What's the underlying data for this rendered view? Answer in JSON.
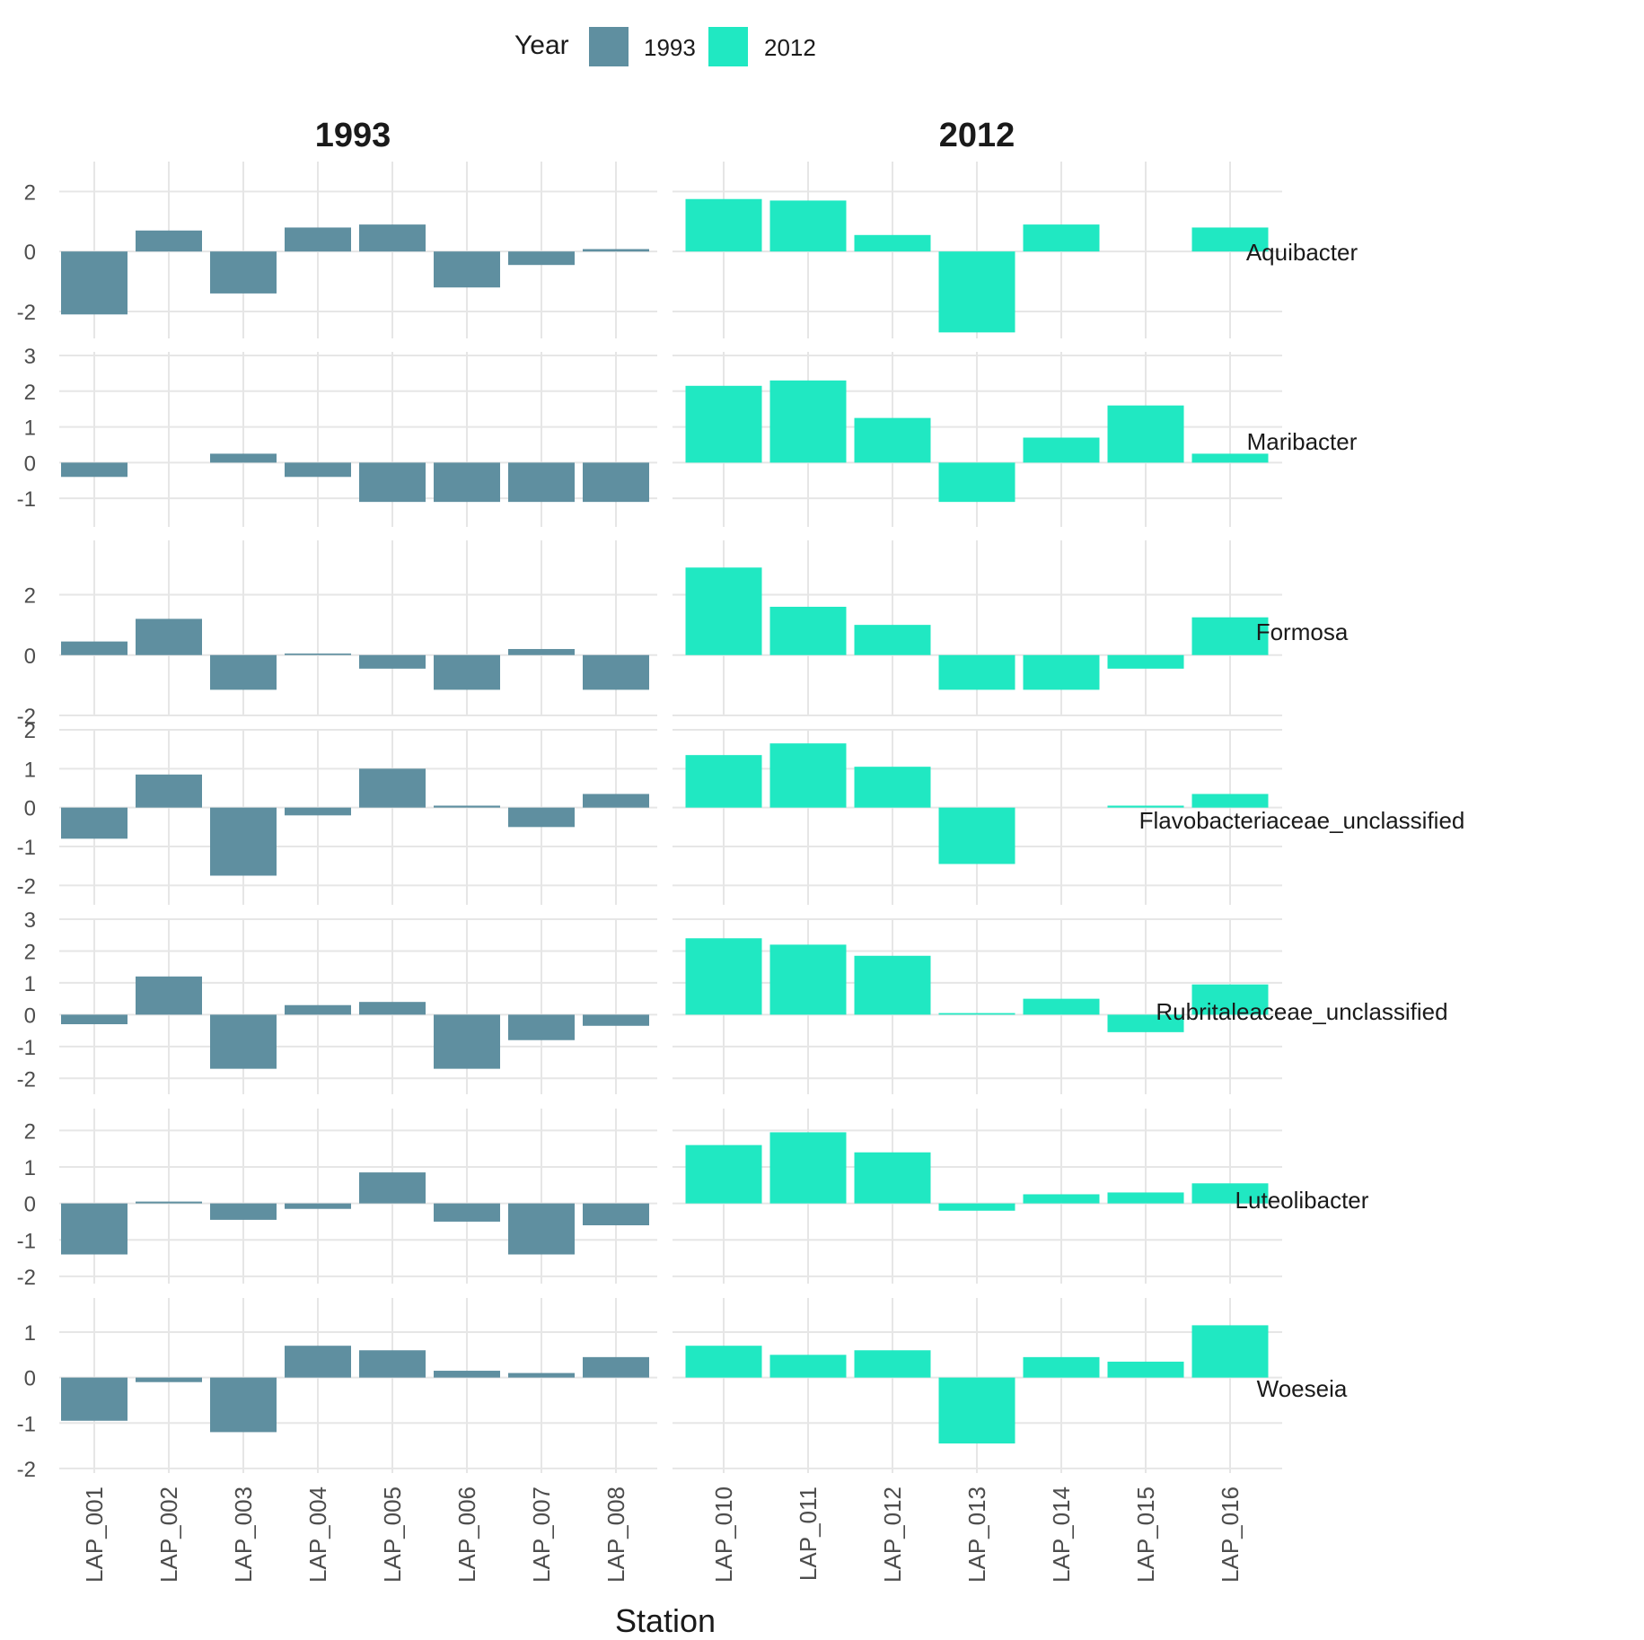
{
  "chart_data": {
    "type": "bar",
    "title": "",
    "xlabel": "Station",
    "ylabel": "",
    "legend": {
      "title": "Year",
      "position": "top",
      "entries": [
        {
          "label": "1993",
          "color": "#5f8fa0"
        },
        {
          "label": "2012",
          "color": "#20e8c2"
        }
      ]
    },
    "columns": [
      {
        "title": "1993",
        "color": "#5f8fa0",
        "categories": [
          "LAP_001",
          "LAP_002",
          "LAP_003",
          "LAP_004",
          "LAP_005",
          "LAP_006",
          "LAP_007",
          "LAP_008"
        ]
      },
      {
        "title": "2012",
        "color": "#20e8c2",
        "categories": [
          "LAP_010",
          "LAP_011",
          "LAP_012",
          "LAP_013",
          "LAP_014",
          "LAP_015",
          "LAP_016"
        ]
      }
    ],
    "rows": [
      {
        "label": "Aquibacter",
        "ylim": [
          -2.9,
          3.0
        ],
        "yticks": [
          -2,
          0,
          2
        ],
        "values": [
          [
            -2.1,
            0.7,
            -1.4,
            0.8,
            0.9,
            -1.2,
            -0.45,
            0.08
          ],
          [
            1.75,
            1.7,
            0.55,
            -2.7,
            0.9,
            0.0,
            0.8
          ]
        ]
      },
      {
        "label": "Maribacter",
        "ylim": [
          -1.8,
          3.1
        ],
        "yticks": [
          -1,
          0,
          1,
          2,
          3
        ],
        "values": [
          [
            -0.4,
            0.0,
            0.25,
            -0.4,
            -1.1,
            -1.1,
            -1.1,
            -1.1
          ],
          [
            2.15,
            2.3,
            1.25,
            -1.1,
            0.7,
            1.6,
            0.25
          ]
        ]
      },
      {
        "label": "Formosa",
        "ylim": [
          -2.0,
          3.8
        ],
        "yticks": [
          -2,
          0,
          2
        ],
        "values": [
          [
            0.45,
            1.2,
            -1.15,
            0.05,
            -0.45,
            -1.15,
            0.2,
            -1.15
          ],
          [
            2.9,
            1.6,
            1.0,
            -1.15,
            -1.15,
            -0.45,
            1.25
          ]
        ]
      },
      {
        "label": "Flavobacteriaceae_unclassified",
        "ylim": [
          -2.5,
          2.0
        ],
        "yticks": [
          -2,
          -1,
          0,
          1,
          2
        ],
        "values": [
          [
            -0.8,
            0.85,
            -1.75,
            -0.2,
            1.0,
            0.05,
            -0.5,
            0.35
          ],
          [
            1.35,
            1.65,
            1.05,
            -1.45,
            0.0,
            0.05,
            0.35
          ]
        ]
      },
      {
        "label": "Rubritaleaceae_unclassified",
        "ylim": [
          -2.5,
          3.0
        ],
        "yticks": [
          -2,
          -1,
          0,
          1,
          2,
          3
        ],
        "values": [
          [
            -0.3,
            1.2,
            -1.7,
            0.3,
            0.4,
            -1.7,
            -0.8,
            -0.35
          ],
          [
            2.4,
            2.2,
            1.85,
            0.05,
            0.5,
            -0.55,
            0.95
          ]
        ]
      },
      {
        "label": "Luteolibacter",
        "ylim": [
          -2.2,
          2.6
        ],
        "yticks": [
          -2,
          -1,
          0,
          1,
          2
        ],
        "values": [
          [
            -1.4,
            0.05,
            -0.45,
            -0.15,
            0.85,
            -0.5,
            -1.4,
            -0.6
          ],
          [
            1.6,
            1.95,
            1.4,
            -0.2,
            0.25,
            0.3,
            0.55
          ]
        ]
      },
      {
        "label": "Woeseia",
        "ylim": [
          -2.1,
          1.75
        ],
        "yticks": [
          -2,
          -1,
          0,
          1
        ],
        "values": [
          [
            -0.95,
            -0.1,
            -1.2,
            0.7,
            0.6,
            0.15,
            0.1,
            0.45
          ],
          [
            0.7,
            0.5,
            0.6,
            -1.45,
            0.45,
            0.35,
            1.15
          ]
        ]
      }
    ]
  }
}
